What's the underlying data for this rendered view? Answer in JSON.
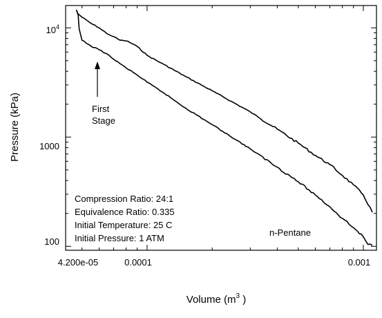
{
  "chart_data": {
    "type": "line",
    "xlabel": "Volume  (m",
    "xlabel_sup": "3",
    "xlabel_close": " )",
    "ylabel": "Pressure  (kPa)",
    "x_scale": "log",
    "y_scale": "log",
    "xlim": [
      4.2e-05,
      0.00115
    ],
    "ylim": [
      92,
      16000
    ],
    "x_ticks": [
      {
        "value": 4.2e-05,
        "label": "4.200e-05"
      },
      {
        "value": 0.0001,
        "label": "0.0001"
      },
      {
        "value": 0.001,
        "label": "0.001"
      }
    ],
    "y_ticks": [
      {
        "value": 100,
        "label": "100"
      },
      {
        "value": 1000,
        "label": "1000"
      },
      {
        "value": 10000,
        "label_base": "10",
        "label_exp": "4"
      }
    ],
    "grid": false,
    "series": [
      {
        "values_note": "",
        "points": [
          [
            4.71e-05,
            14600
          ],
          [
            4.77e-05,
            13600
          ],
          [
            5e-05,
            12500
          ],
          [
            5.5e-05,
            11000
          ],
          [
            6e-05,
            10000
          ],
          [
            6.5e-05,
            8900
          ],
          [
            7e-05,
            8300
          ],
          [
            7.5e-05,
            7700
          ],
          [
            8e-05,
            7600
          ],
          [
            8.5e-05,
            7200
          ],
          [
            9e-05,
            6750
          ],
          [
            0.0001,
            5600
          ],
          [
            0.00012,
            4600
          ],
          [
            0.00015,
            3600
          ],
          [
            0.0002,
            2650
          ],
          [
            0.0003,
            1700
          ],
          [
            0.0004,
            1180
          ],
          [
            0.0005,
            880
          ],
          [
            0.0006,
            680
          ],
          [
            0.0007,
            560
          ],
          [
            0.0008,
            445
          ],
          [
            0.0009,
            365
          ],
          [
            0.001,
            295
          ],
          [
            0.0011,
            205
          ]
        ]
      },
      {
        "values_note": "",
        "points": [
          [
            4.71e-05,
            14600
          ],
          [
            4.8e-05,
            13000
          ],
          [
            4.85e-05,
            9800
          ],
          [
            5e-05,
            7700
          ],
          [
            5.5e-05,
            6800
          ],
          [
            6e-05,
            6300
          ],
          [
            6.5e-05,
            5800
          ],
          [
            7e-05,
            5150
          ],
          [
            7.5e-05,
            4700
          ],
          [
            8e-05,
            4300
          ],
          [
            9e-05,
            3700
          ],
          [
            0.0001,
            3180
          ],
          [
            0.00012,
            2520
          ],
          [
            0.00015,
            1850
          ],
          [
            0.0002,
            1300
          ],
          [
            0.0003,
            780
          ],
          [
            0.0004,
            530
          ],
          [
            0.0005,
            390
          ],
          [
            0.0006,
            295
          ],
          [
            0.0007,
            230
          ],
          [
            0.0008,
            180
          ],
          [
            0.0009,
            148
          ],
          [
            0.001,
            122
          ],
          [
            0.00105,
            104
          ],
          [
            0.0011,
            102
          ]
        ]
      }
    ],
    "annotations": {
      "first_stage_line1": "First",
      "first_stage_line2": "Stage",
      "fuel": "n-Pentane",
      "conditions": [
        "Compression Ratio:  24:1",
        "Equivalence Ratio:  0.335",
        "Initial Temperature:  25 C",
        "Initial Pressure:  1 ATM"
      ]
    }
  }
}
